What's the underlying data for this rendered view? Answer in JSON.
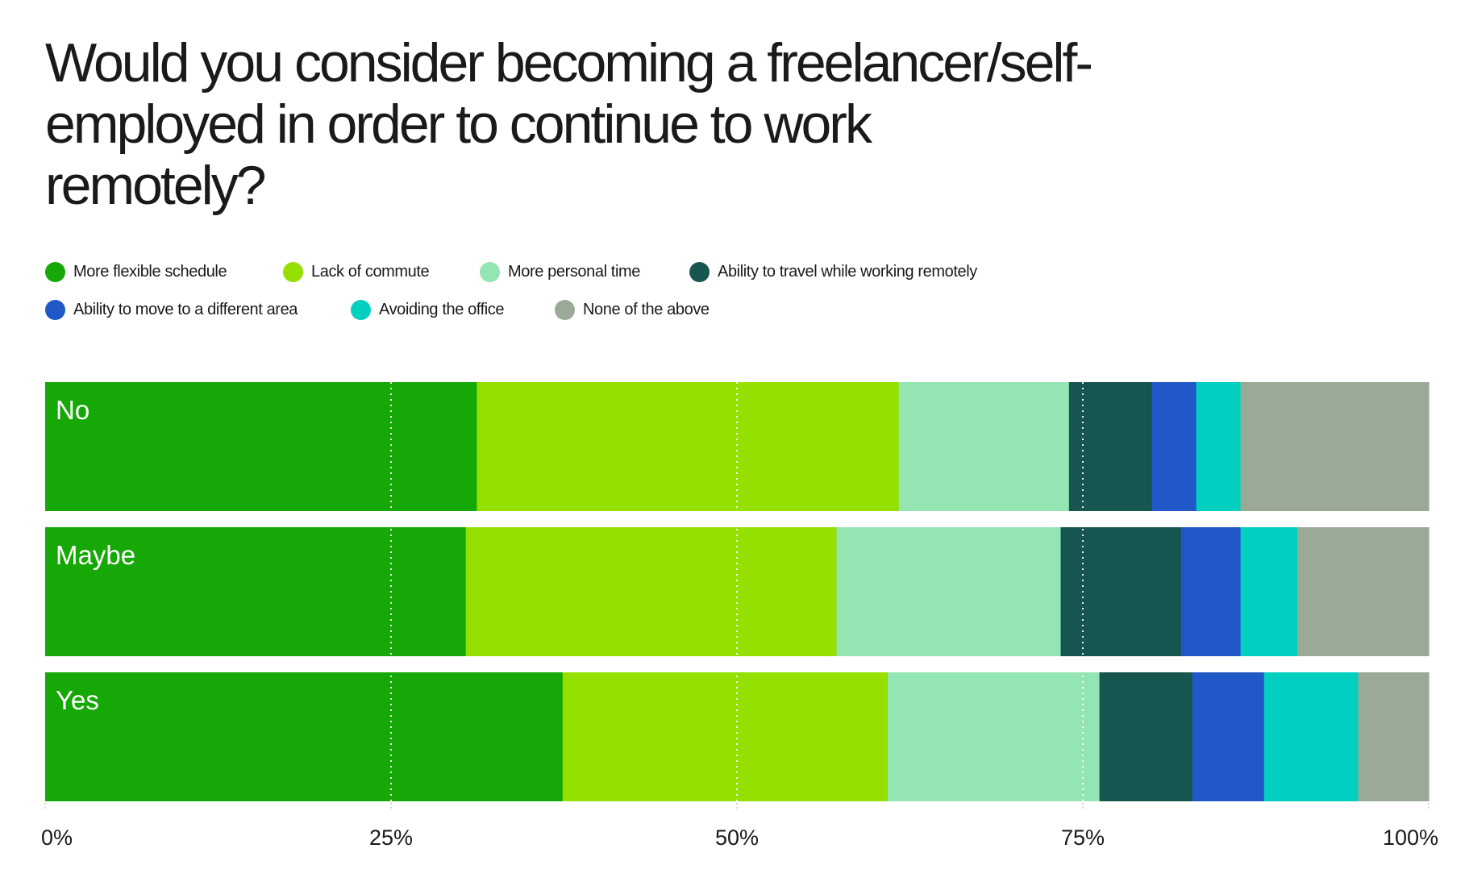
{
  "chart_data": {
    "type": "bar",
    "orientation": "horizontal",
    "stacked": true,
    "title": "Would you consider becoming a freelancer/self-employed in order to continue to work remotely?",
    "categories": [
      "No",
      "Maybe",
      "Yes"
    ],
    "series": [
      {
        "name": "More flexible schedule",
        "color": "#16a806",
        "values": [
          31.2,
          30.4,
          37.4
        ]
      },
      {
        "name": "Lack of commute",
        "color": "#95e000",
        "values": [
          30.5,
          26.8,
          23.5
        ]
      },
      {
        "name": "More personal time",
        "color": "#94e5b4",
        "values": [
          12.3,
          16.2,
          15.3
        ]
      },
      {
        "name": "Ability to travel while working remotely",
        "color": "#175550",
        "values": [
          6.0,
          8.7,
          6.7
        ]
      },
      {
        "name": "Ability to move to a different area",
        "color": "#2058c7",
        "values": [
          3.2,
          4.3,
          5.2
        ]
      },
      {
        "name": "Avoiding the office",
        "color": "#03cfc0",
        "values": [
          3.2,
          4.1,
          6.8
        ]
      },
      {
        "name": "None of the above",
        "color": "#9aaa96",
        "values": [
          13.6,
          9.5,
          5.1
        ]
      }
    ],
    "xlim": [
      0,
      100
    ],
    "xticks": [
      0,
      25,
      50,
      75,
      100
    ],
    "xtick_labels": [
      "0%",
      "25%",
      "50%",
      "75%",
      "100%"
    ],
    "grid": true,
    "legend_position": "top-left"
  }
}
